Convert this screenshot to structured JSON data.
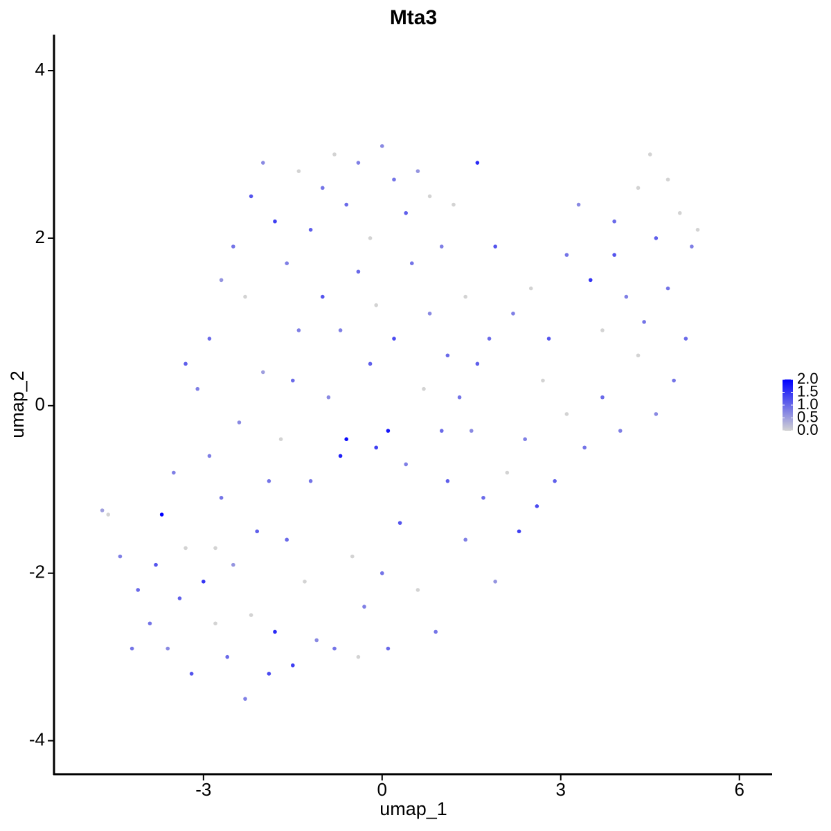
{
  "chart_data": {
    "type": "scatter",
    "title": "Mta3",
    "x_label": "umap_1",
    "y_label": "umap_2",
    "xlim": [
      -5.51,
      6.55
    ],
    "ylim": [
      -4.4,
      4.43
    ],
    "xticks": [
      -3,
      0,
      3,
      6
    ],
    "yticks": [
      -4,
      -2,
      0,
      2,
      4
    ],
    "colorscale": {
      "low": "#d3d3d3",
      "high": "#0000ff",
      "lim": [
        0,
        2
      ],
      "ticks": [
        {
          "value": 0,
          "label": "0.0"
        },
        {
          "value": 0.5,
          "label": "0.5"
        },
        {
          "value": 1,
          "label": "1.0"
        },
        {
          "value": 1.5,
          "label": "1.5"
        },
        {
          "value": 2,
          "label": "2.0"
        }
      ]
    },
    "x": [
      -4.7,
      -4.6,
      -4.4,
      -4.1,
      -3.9,
      -3.7,
      -3.6,
      -3.4,
      -3.3,
      -3.2,
      -3.0,
      -2.9,
      -2.8,
      -2.7,
      -2.6,
      -2.5,
      -2.4,
      -2.3,
      -2.2,
      -2.1,
      -2.0,
      -1.9,
      -1.8,
      -1.7,
      -1.6,
      -1.5,
      -1.4,
      -1.3,
      -1.2,
      -1.1,
      -3.1,
      -2.9,
      -2.7,
      -2.5,
      -2.3,
      -2.2,
      -2.0,
      -1.8,
      -1.6,
      -1.4,
      -1.2,
      -1.0,
      -0.8,
      -0.6,
      -0.4,
      -0.2,
      0.0,
      0.2,
      0.4,
      0.6,
      0.8,
      1.0,
      1.2,
      1.6,
      -1.0,
      -0.7,
      -0.4,
      -0.1,
      0.2,
      0.5,
      0.8,
      1.1,
      1.4,
      1.6,
      1.9,
      2.2,
      2.5,
      2.8,
      3.1,
      3.3,
      3.5,
      3.7,
      3.9,
      4.1,
      4.3,
      4.5,
      4.6,
      4.8,
      5.0,
      5.2,
      5.1,
      4.9,
      4.6,
      4.3,
      4.0,
      3.7,
      3.4,
      3.1,
      2.9,
      2.6,
      2.3,
      2.1,
      1.9,
      1.7,
      1.4,
      1.1,
      0.9,
      0.6,
      0.3,
      0.1,
      -0.1,
      -0.3,
      -0.5,
      -0.6,
      -0.8,
      -0.9,
      -0.2,
      0.4,
      0.7,
      1.0,
      1.3,
      0.1,
      -0.7,
      -1.5,
      -1.9,
      -3.5,
      -3.8,
      -4.2,
      -3.3,
      -2.8,
      1.5,
      2.7,
      1.8,
      3.9,
      4.8,
      5.3,
      4.4,
      2.4,
      0.0,
      -0.4
    ],
    "y": [
      -1.25,
      -1.3,
      -1.8,
      -2.2,
      -2.6,
      -1.3,
      -2.9,
      -2.3,
      -1.7,
      -3.2,
      -2.1,
      -0.6,
      -2.6,
      -1.1,
      -3.0,
      -1.9,
      -0.2,
      -3.5,
      -2.5,
      -1.5,
      0.4,
      -3.2,
      -2.7,
      -0.4,
      -1.6,
      -3.1,
      0.9,
      -2.1,
      -0.9,
      -2.8,
      0.2,
      0.8,
      1.5,
      1.9,
      1.3,
      2.5,
      2.9,
      2.2,
      1.7,
      2.8,
      2.1,
      2.6,
      3.0,
      2.4,
      2.9,
      2.0,
      3.1,
      2.7,
      2.3,
      2.8,
      2.5,
      1.9,
      2.4,
      2.9,
      1.3,
      0.9,
      1.6,
      1.2,
      0.8,
      1.7,
      1.1,
      0.6,
      1.3,
      0.5,
      1.9,
      1.1,
      1.4,
      0.8,
      1.8,
      2.4,
      1.5,
      0.9,
      2.2,
      1.3,
      2.6,
      3.0,
      2.0,
      1.4,
      2.3,
      1.9,
      0.8,
      0.3,
      -0.1,
      0.6,
      -0.3,
      0.1,
      -0.5,
      -0.1,
      -0.9,
      -1.2,
      -1.5,
      -0.8,
      -2.1,
      -1.1,
      -1.6,
      -0.9,
      -2.7,
      -2.2,
      -1.4,
      -2.9,
      -0.5,
      -2.4,
      -1.8,
      -0.4,
      -2.9,
      0.1,
      0.5,
      -0.7,
      0.2,
      -0.3,
      0.1,
      -0.3,
      -0.6,
      0.3,
      -0.9,
      -0.8,
      -1.9,
      -2.9,
      0.5,
      -1.7,
      -0.3,
      0.3,
      0.8,
      1.8,
      2.7,
      2.1,
      1.0,
      -0.4,
      -2.0,
      -3.0
    ],
    "values": [
      0.5,
      0,
      0.8,
      1.0,
      0.9,
      2.0,
      0.7,
      1.1,
      0,
      1.2,
      1.5,
      0.8,
      0,
      0.9,
      1.0,
      0.6,
      0.7,
      0.8,
      0,
      1.1,
      0.5,
      1.3,
      1.6,
      0,
      1.0,
      1.4,
      0.8,
      0,
      0.9,
      0.7,
      0.8,
      1.0,
      0.6,
      0.9,
      0,
      1.2,
      0.7,
      1.4,
      0.8,
      0,
      1.1,
      0.9,
      0,
      1.0,
      0.8,
      0,
      0.7,
      0.9,
      1.1,
      0.6,
      0,
      0.8,
      0,
      1.6,
      1.2,
      0.8,
      1.0,
      0,
      1.3,
      0.9,
      0.7,
      1.0,
      0,
      1.1,
      1.2,
      0.8,
      0,
      1.2,
      0.9,
      0.7,
      1.5,
      0,
      1.0,
      0.8,
      0,
      0,
      1.1,
      0.9,
      0,
      0.8,
      1.0,
      0.9,
      0.7,
      0,
      0.8,
      1.0,
      0.9,
      0,
      1.1,
      1.3,
      1.4,
      0,
      0.6,
      1.0,
      0.8,
      1.1,
      0.9,
      0,
      1.2,
      1.0,
      1.4,
      0.8,
      0,
      1.9,
      0.9,
      0.7,
      1.1,
      0.8,
      0,
      1.0,
      0.9,
      1.8,
      1.7,
      1.0,
      0.9,
      0.8,
      1.2,
      0.9,
      1.1,
      0,
      0.7,
      0,
      1.0,
      1.2,
      0,
      0,
      0.9,
      0.8,
      0.9,
      0
    ]
  }
}
